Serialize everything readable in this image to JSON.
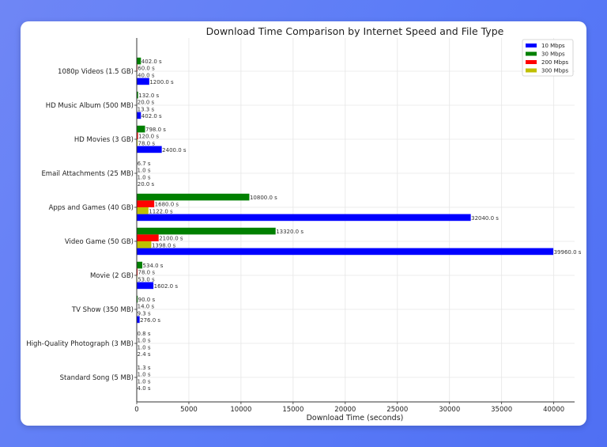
{
  "chart_data": {
    "type": "bar",
    "orientation": "horizontal",
    "title": "Download Time Comparison by Internet Speed and File Type",
    "xlabel": "Download Time (seconds)",
    "ylabel": "",
    "xlim": [
      0,
      42000
    ],
    "xticks": [
      0,
      5000,
      10000,
      15000,
      20000,
      25000,
      30000,
      35000,
      40000
    ],
    "grid": true,
    "legend_position": "top-right",
    "categories": [
      "1080p Videos (1.5 GB)",
      "HD Music Album (500 MB)",
      "HD Movies (3 GB)",
      "Email Attachments (25 MB)",
      "Apps and Games (40 GB)",
      "Video Game (50 GB)",
      "Movie (2 GB)",
      "TV Show (350 MB)",
      "High-Quality Photograph (3 MB)",
      "Standard Song (5 MB)"
    ],
    "series": [
      {
        "name": "10 Mbps",
        "color": "#0000ff",
        "values": [
          1200.0,
          402.0,
          2400.0,
          20.0,
          32040.0,
          39960.0,
          1602.0,
          276.0,
          2.4,
          4.0
        ]
      },
      {
        "name": "30 Mbps",
        "color": "#008000",
        "values": [
          402.0,
          132.0,
          798.0,
          6.7,
          10800.0,
          13320.0,
          534.0,
          90.0,
          0.8,
          1.3
        ]
      },
      {
        "name": "200 Mbps",
        "color": "#ff0000",
        "values": [
          60.0,
          20.0,
          120.0,
          1.0,
          1680.0,
          2100.0,
          78.0,
          14.0,
          1.0,
          1.0
        ]
      },
      {
        "name": "300 Mbps",
        "color": "#bfbf00",
        "values": [
          40.0,
          13.3,
          78.0,
          1.0,
          1122.0,
          1398.0,
          53.0,
          9.3,
          1.0,
          1.0
        ]
      }
    ],
    "value_labels": [
      [
        "1200.0 s",
        "402.0 s",
        "2400.0 s",
        "20.0 s",
        "32040.0 s",
        "39960.0 s",
        "1602.0 s",
        "276.0 s",
        "2.4 s",
        "4.0 s"
      ],
      [
        "402.0 s",
        "132.0 s",
        "798.0 s",
        "6.7 s",
        "10800.0 s",
        "13320.0 s",
        "534.0 s",
        "90.0 s",
        "0.8 s",
        "1.3 s"
      ],
      [
        "60.0 s",
        "20.0 s",
        "120.0 s",
        "1.0 s",
        "1680.0 s",
        "2100.0 s",
        "78.0 s",
        "14.0 s",
        "1.0 s",
        "1.0 s"
      ],
      [
        "40.0 s",
        "13.3 s",
        "78.0 s",
        "1.0 s",
        "1122.0 s",
        "1398.0 s",
        "53.0 s",
        "9.3 s",
        "1.0 s",
        "1.0 s"
      ]
    ]
  }
}
